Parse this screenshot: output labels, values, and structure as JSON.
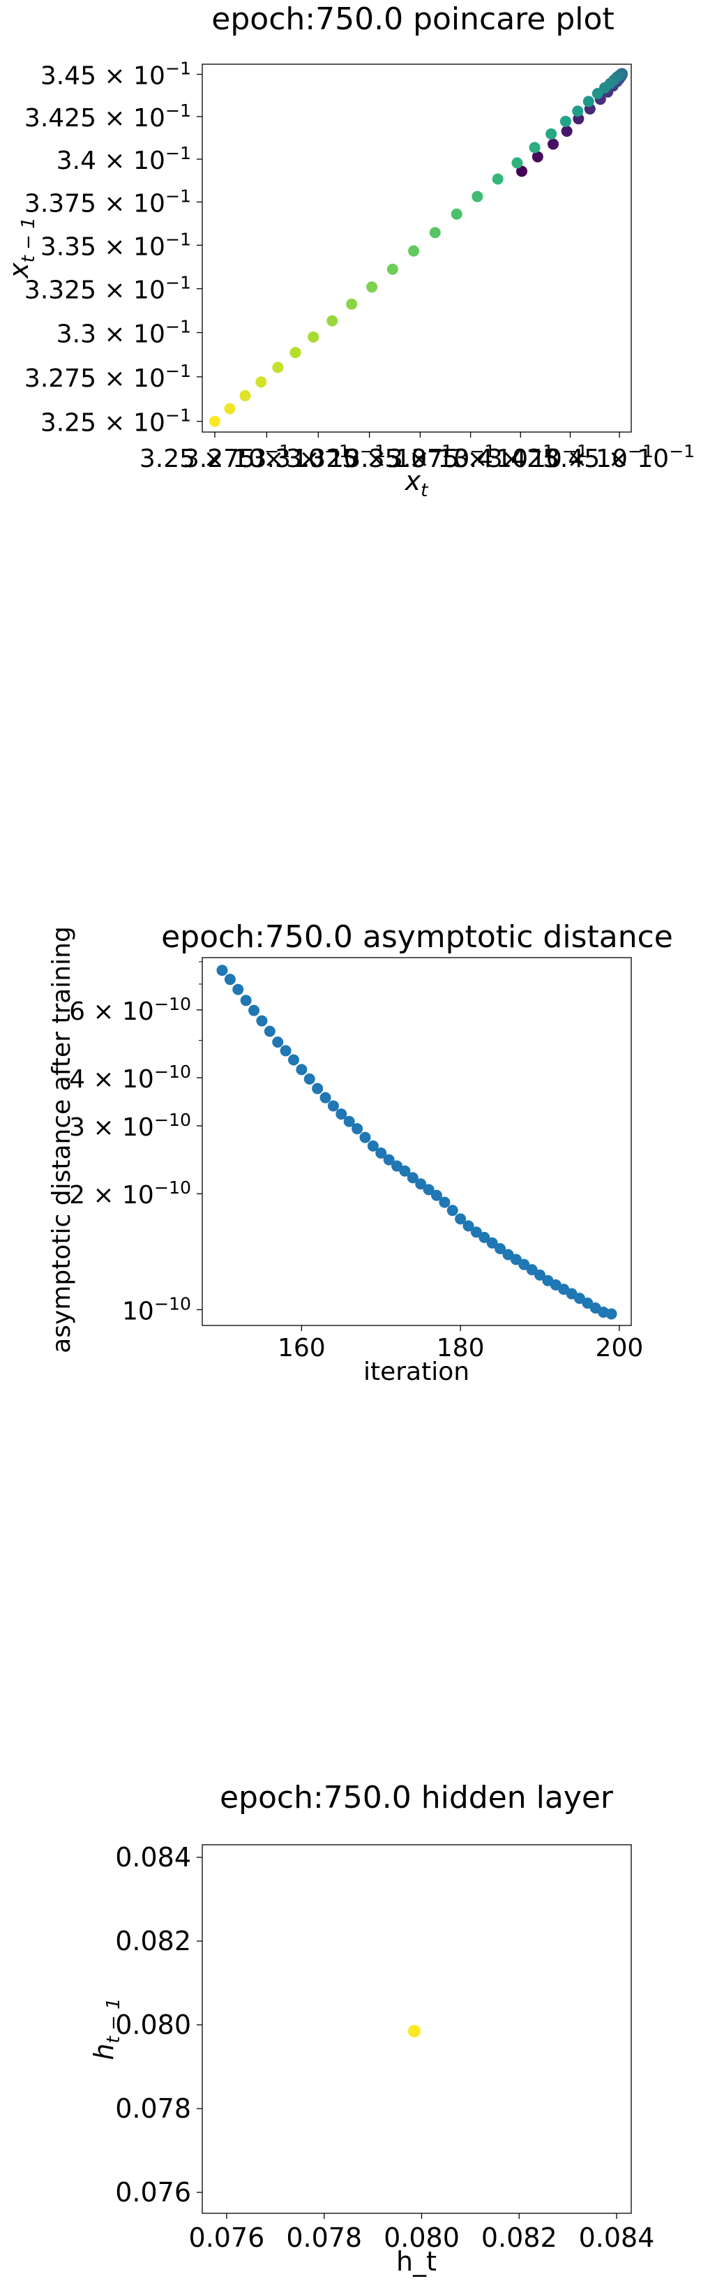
{
  "chart_data": [
    {
      "type": "scatter",
      "title": "epoch:750.0 poincare plot",
      "xlabel": "x_t",
      "ylabel": "x_{t-1}",
      "log_x": true,
      "log_y": true,
      "xlim": [
        0.3244,
        0.3456
      ],
      "ylim": [
        0.3244,
        0.3456
      ],
      "xticks": [
        {
          "value": 0.325,
          "label": "3.25 × 10^-1"
        },
        {
          "value": 0.3275,
          "label": "3.275 × 10^-1"
        },
        {
          "value": 0.33,
          "label": "3.3 × 10^-1"
        },
        {
          "value": 0.3325,
          "label": "3.325 × 10^-1"
        },
        {
          "value": 0.335,
          "label": "3.35 × 10^-1"
        },
        {
          "value": 0.3375,
          "label": "3.375 × 10^-1"
        },
        {
          "value": 0.34,
          "label": "3.4 × 10^-1"
        },
        {
          "value": 0.3425,
          "label": "3.425 × 10^-1"
        },
        {
          "value": 0.345,
          "label": "3.45 × 10^-1"
        }
      ],
      "yticks": [
        {
          "value": 0.325,
          "label": "3.25 × 10^-1"
        },
        {
          "value": 0.3275,
          "label": "3.275 × 10^-1"
        },
        {
          "value": 0.33,
          "label": "3.3 × 10^-1"
        },
        {
          "value": 0.3325,
          "label": "3.325 × 10^-1"
        },
        {
          "value": 0.335,
          "label": "3.35 × 10^-1"
        },
        {
          "value": 0.3375,
          "label": "3.375 × 10^-1"
        },
        {
          "value": 0.34,
          "label": "3.4 × 10^-1"
        },
        {
          "value": 0.3425,
          "label": "3.425 × 10^-1"
        },
        {
          "value": 0.345,
          "label": "3.45 × 10^-1"
        }
      ],
      "colormap": "viridis",
      "color_scale": "point index (dark purple = first, yellow = last)",
      "points": [
        {
          "x": 0.34006,
          "y": 0.33929
        },
        {
          "x": 0.34086,
          "y": 0.34014
        },
        {
          "x": 0.34164,
          "y": 0.34088
        },
        {
          "x": 0.34233,
          "y": 0.34164
        },
        {
          "x": 0.34292,
          "y": 0.34237
        },
        {
          "x": 0.3435,
          "y": 0.34295
        },
        {
          "x": 0.34403,
          "y": 0.34352
        },
        {
          "x": 0.3444,
          "y": 0.34395
        },
        {
          "x": 0.34467,
          "y": 0.3443
        },
        {
          "x": 0.34487,
          "y": 0.34456
        },
        {
          "x": 0.34498,
          "y": 0.34471
        },
        {
          "x": 0.34506,
          "y": 0.34484
        },
        {
          "x": 0.3451,
          "y": 0.34492
        },
        {
          "x": 0.34513,
          "y": 0.34498
        },
        {
          "x": 0.34514,
          "y": 0.34503
        },
        {
          "x": 0.34513,
          "y": 0.34504
        },
        {
          "x": 0.3451,
          "y": 0.34503
        },
        {
          "x": 0.34506,
          "y": 0.34499
        },
        {
          "x": 0.34499,
          "y": 0.34493
        },
        {
          "x": 0.34488,
          "y": 0.34484
        },
        {
          "x": 0.34473,
          "y": 0.34467
        },
        {
          "x": 0.34453,
          "y": 0.34446
        },
        {
          "x": 0.34425,
          "y": 0.3442
        },
        {
          "x": 0.34389,
          "y": 0.34386
        },
        {
          "x": 0.34343,
          "y": 0.34339
        },
        {
          "x": 0.34288,
          "y": 0.34282
        },
        {
          "x": 0.34227,
          "y": 0.34222
        },
        {
          "x": 0.34154,
          "y": 0.34148
        },
        {
          "x": 0.34071,
          "y": 0.34068
        },
        {
          "x": 0.33983,
          "y": 0.33978
        },
        {
          "x": 0.33886,
          "y": 0.33884
        },
        {
          "x": 0.33784,
          "y": 0.33782
        },
        {
          "x": 0.33681,
          "y": 0.3368
        },
        {
          "x": 0.33574,
          "y": 0.33573
        },
        {
          "x": 0.33468,
          "y": 0.33467
        },
        {
          "x": 0.33364,
          "y": 0.33362
        },
        {
          "x": 0.33262,
          "y": 0.3326
        },
        {
          "x": 0.33163,
          "y": 0.33162
        },
        {
          "x": 0.33068,
          "y": 0.33067
        },
        {
          "x": 0.32976,
          "y": 0.32975
        },
        {
          "x": 0.32889,
          "y": 0.32887
        },
        {
          "x": 0.32804,
          "y": 0.32803
        },
        {
          "x": 0.32723,
          "y": 0.32721
        },
        {
          "x": 0.32646,
          "y": 0.32644
        },
        {
          "x": 0.32572,
          "y": 0.32571
        },
        {
          "x": 0.325,
          "y": 0.325
        }
      ]
    },
    {
      "type": "scatter",
      "title": "epoch:750.0 asymptotic distance",
      "xlabel": "iteration",
      "ylabel": "asymptotic distance after training",
      "log_y": true,
      "xlim": [
        147.5,
        201.5
      ],
      "ylim": [
        9.1e-11,
        8.2e-10
      ],
      "xticks": [
        {
          "value": 160,
          "label": "160"
        },
        {
          "value": 180,
          "label": "180"
        },
        {
          "value": 200,
          "label": "200"
        }
      ],
      "yticks": [
        {
          "value": 1e-10,
          "label": "10^-10"
        },
        {
          "value": 2e-10,
          "label": "2 × 10^-10"
        },
        {
          "value": 3e-10,
          "label": "3 × 10^-10"
        },
        {
          "value": 4e-10,
          "label": "4 × 10^-10"
        },
        {
          "value": 6e-10,
          "label": "6 × 10^-10"
        }
      ],
      "minor_yticks": [
        5e-10,
        7e-10,
        8e-10
      ],
      "color": "#1f77b4",
      "x": [
        150,
        151,
        152,
        153,
        154,
        155,
        156,
        157,
        158,
        159,
        160,
        161,
        162,
        163,
        164,
        165,
        166,
        167,
        168,
        169,
        170,
        171,
        172,
        173,
        174,
        175,
        176,
        177,
        178,
        179,
        180,
        181,
        182,
        183,
        184,
        185,
        186,
        187,
        188,
        189,
        190,
        191,
        192,
        193,
        194,
        195,
        196,
        197,
        198,
        199
      ],
      "y": [
        7.6e-10,
        7.2e-10,
        6.78e-10,
        6.35e-10,
        5.98e-10,
        5.62e-10,
        5.28e-10,
        4.95e-10,
        4.7e-10,
        4.45e-10,
        4.2e-10,
        3.97e-10,
        3.75e-10,
        3.55e-10,
        3.38e-10,
        3.22e-10,
        3.08e-10,
        2.95e-10,
        2.8e-10,
        2.66e-10,
        2.55e-10,
        2.45e-10,
        2.36e-10,
        2.29e-10,
        2.2e-10,
        2.12e-10,
        2.05e-10,
        1.98e-10,
        1.9e-10,
        1.81e-10,
        1.72e-10,
        1.65e-10,
        1.59e-10,
        1.54e-10,
        1.49e-10,
        1.44e-10,
        1.39e-10,
        1.35e-10,
        1.31e-10,
        1.27e-10,
        1.23e-10,
        1.19e-10,
        1.16e-10,
        1.13e-10,
        1.1e-10,
        1.07e-10,
        1.04e-10,
        1.01e-10,
        9.85e-11,
        9.75e-11
      ]
    },
    {
      "type": "scatter",
      "title": "epoch:750.0 hidden layer",
      "xlabel": "h_t",
      "ylabel": "h_{t-1}",
      "xlim": [
        0.0755,
        0.0843
      ],
      "ylim": [
        0.0755,
        0.0843
      ],
      "xticks": [
        {
          "value": 0.076,
          "label": "0.076"
        },
        {
          "value": 0.078,
          "label": "0.078"
        },
        {
          "value": 0.08,
          "label": "0.080"
        },
        {
          "value": 0.082,
          "label": "0.082"
        },
        {
          "value": 0.084,
          "label": "0.084"
        }
      ],
      "yticks": [
        {
          "value": 0.076,
          "label": "0.076"
        },
        {
          "value": 0.078,
          "label": "0.078"
        },
        {
          "value": 0.08,
          "label": "0.080"
        },
        {
          "value": 0.082,
          "label": "0.082"
        },
        {
          "value": 0.084,
          "label": "0.084"
        }
      ],
      "color": "#fde725",
      "points": [
        {
          "x": 0.07985,
          "y": 0.07985
        }
      ]
    }
  ]
}
